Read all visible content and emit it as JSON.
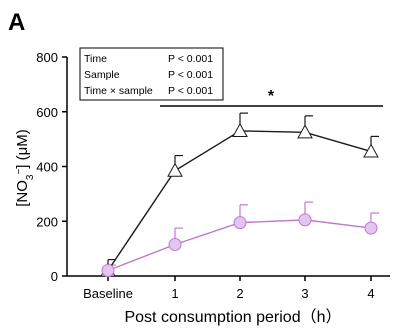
{
  "panel_label": "A",
  "stats_box": {
    "rows": [
      {
        "factor": "Time",
        "p": "P < 0.001"
      },
      {
        "factor": "Sample",
        "p": "P < 0.001"
      },
      {
        "factor": "Time × sample",
        "p": "P < 0.001"
      }
    ]
  },
  "significance_marker": "*",
  "colors": {
    "series_a": "#1a1a1a",
    "series_b": "#c078cf",
    "series_b_fill": "#e3c6f0",
    "axis": "#000000"
  },
  "chart_data": {
    "type": "line",
    "categories": [
      "Baseline",
      "1",
      "2",
      "3",
      "4"
    ],
    "xlabel": "Post consumption period（h）",
    "ylabel_main": "[NO",
    "ylabel_sub": "3",
    "ylabel_sup": "−",
    "ylabel_tail": "] (μM)",
    "ylim": [
      0,
      800
    ],
    "yticks": [
      0,
      200,
      400,
      600,
      800
    ],
    "grid": false,
    "series": [
      {
        "marker": "triangle-open",
        "values": [
          20,
          385,
          530,
          525,
          455
        ],
        "errors": [
          40,
          55,
          65,
          60,
          55
        ]
      },
      {
        "marker": "circle-filled",
        "values": [
          20,
          115,
          195,
          205,
          175
        ],
        "errors": [
          20,
          60,
          65,
          65,
          55
        ]
      }
    ]
  }
}
